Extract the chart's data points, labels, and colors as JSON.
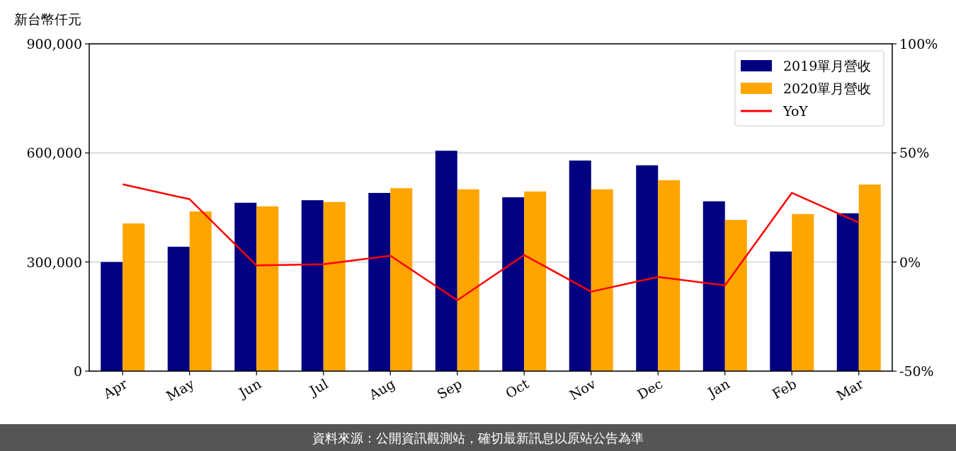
{
  "chart_data": {
    "type": "bar",
    "ylabel": "新台幣仟元",
    "categories": [
      "Apr",
      "May",
      "Jun",
      "Jul",
      "Aug",
      "Sep",
      "Oct",
      "Nov",
      "Dec",
      "Jan",
      "Feb",
      "Mar"
    ],
    "series": [
      {
        "name": "2019單月營收",
        "color": "#000080",
        "values": [
          300000,
          342000,
          463000,
          470000,
          490000,
          606000,
          478000,
          579000,
          566000,
          467000,
          329000,
          434000
        ]
      },
      {
        "name": "2020單月營收",
        "color": "#ffa500",
        "values": [
          406000,
          439000,
          453000,
          465000,
          503000,
          500000,
          494000,
          500000,
          525000,
          416000,
          432000,
          513000
        ]
      },
      {
        "name": "YoY",
        "color": "#ff0000",
        "type": "line",
        "axis": "y2",
        "values": [
          35.6,
          28.8,
          -1.6,
          -1.0,
          2.9,
          -17.5,
          3.2,
          -13.6,
          -6.8,
          -10.7,
          31.7,
          18.1
        ]
      }
    ],
    "ylim": [
      0,
      900000
    ],
    "yticks": [
      0,
      {
        "value": 300000,
        "label": "300,000"
      },
      {
        "value": 600000,
        "label": "600,000"
      },
      {
        "value": 900000,
        "label": "900,000"
      }
    ],
    "y2lim": [
      -50,
      100
    ],
    "y2ticks": [
      {
        "value": -50,
        "label": "-50%"
      },
      {
        "value": 0,
        "label": "0%"
      },
      {
        "value": 50,
        "label": "50%"
      },
      {
        "value": 100,
        "label": "100%"
      }
    ],
    "grid": "y",
    "legend": "top right",
    "marker": "none",
    "line_style": "solid",
    "annotations": [
      "資料來源：公開資訊觀測站，確切最新訊息以原站公告為準"
    ]
  }
}
